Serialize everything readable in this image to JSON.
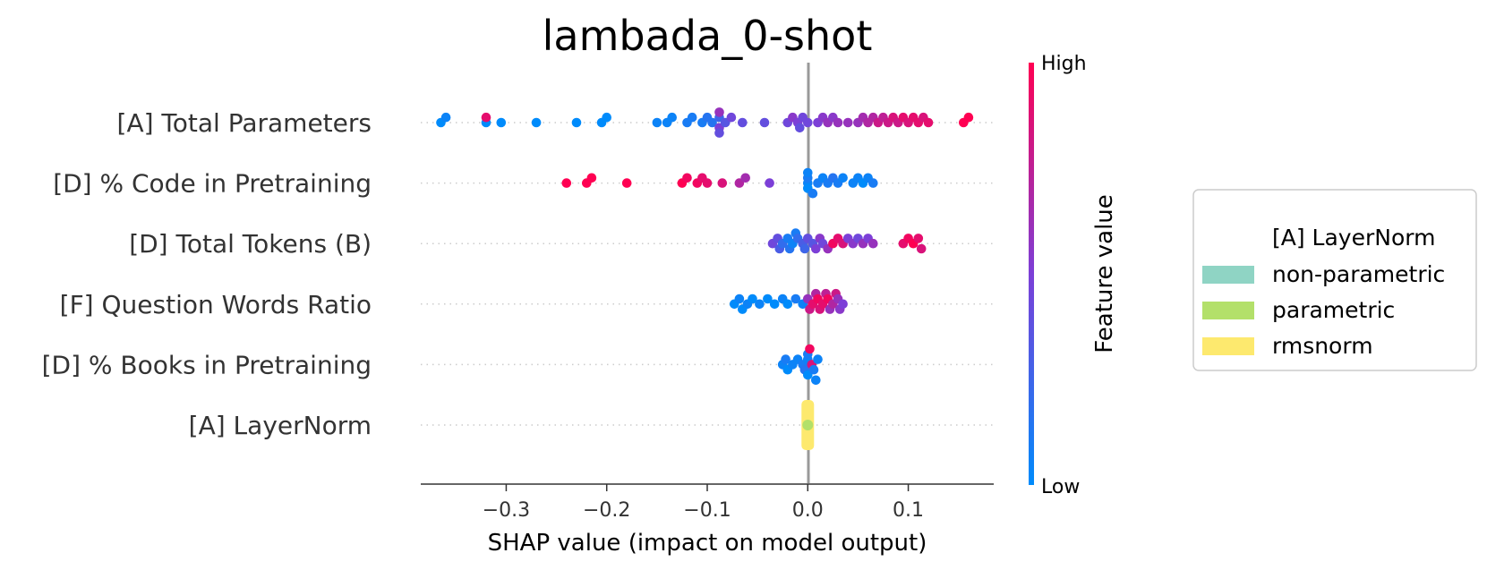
{
  "chart_data": {
    "type": "scatter",
    "subtype": "shap-beeswarm",
    "title": "lambada_0-shot",
    "xlabel": "SHAP value (impact on model output)",
    "xlim": [
      -0.385,
      0.185
    ],
    "xticks": [
      -0.3,
      -0.2,
      -0.1,
      0.0,
      0.1
    ],
    "xtick_labels": [
      "−0.3",
      "−0.2",
      "−0.1",
      "0.0",
      "0.1"
    ],
    "colorbar": {
      "label": "Feature value",
      "high_label": "High",
      "low_label": "Low",
      "low_color": "#008bfb",
      "mid_color": "#7c3fd7",
      "high_color": "#ff0052"
    },
    "legend": {
      "title": "[A] LayerNorm",
      "entries": [
        {
          "label": "non-parametric",
          "color": "#8fd4c4"
        },
        {
          "label": "parametric",
          "color": "#b3e06a"
        },
        {
          "label": "rmsnorm",
          "color": "#fde96e"
        }
      ]
    },
    "features": [
      {
        "name": "[A] Total Parameters",
        "points": [
          [
            -0.365,
            0.0
          ],
          [
            -0.36,
            0.05
          ],
          [
            -0.32,
            0.0
          ],
          [
            -0.32,
            0.9
          ],
          [
            -0.305,
            0.0
          ],
          [
            -0.27,
            0.0
          ],
          [
            -0.23,
            0.0
          ],
          [
            -0.205,
            0.0
          ],
          [
            -0.2,
            0.0
          ],
          [
            -0.15,
            0.05
          ],
          [
            -0.14,
            0.05
          ],
          [
            -0.135,
            0.05
          ],
          [
            -0.12,
            0.1
          ],
          [
            -0.115,
            0.1
          ],
          [
            -0.105,
            0.1
          ],
          [
            -0.1,
            0.15
          ],
          [
            -0.095,
            0.15
          ],
          [
            -0.088,
            0.25
          ],
          [
            -0.088,
            0.5
          ],
          [
            -0.088,
            0.6
          ],
          [
            -0.088,
            0.4
          ],
          [
            -0.082,
            0.35
          ],
          [
            -0.076,
            0.45
          ],
          [
            -0.065,
            0.4
          ],
          [
            -0.043,
            0.4
          ],
          [
            -0.02,
            0.45
          ],
          [
            -0.015,
            0.55
          ],
          [
            -0.01,
            0.5
          ],
          [
            -0.008,
            0.4
          ],
          [
            -0.005,
            0.45
          ],
          [
            0.0,
            0.45
          ],
          [
            0.01,
            0.5
          ],
          [
            0.015,
            0.55
          ],
          [
            0.02,
            0.6
          ],
          [
            0.025,
            0.55
          ],
          [
            0.03,
            0.6
          ],
          [
            0.04,
            0.6
          ],
          [
            0.05,
            0.6
          ],
          [
            0.055,
            0.65
          ],
          [
            0.06,
            0.7
          ],
          [
            0.065,
            0.7
          ],
          [
            0.07,
            0.8
          ],
          [
            0.075,
            0.75
          ],
          [
            0.08,
            0.8
          ],
          [
            0.085,
            0.85
          ],
          [
            0.09,
            0.8
          ],
          [
            0.095,
            0.9
          ],
          [
            0.1,
            0.85
          ],
          [
            0.105,
            0.9
          ],
          [
            0.11,
            0.9
          ],
          [
            0.115,
            0.85
          ],
          [
            0.12,
            0.9
          ],
          [
            0.155,
            1.0
          ],
          [
            0.16,
            1.0
          ]
        ]
      },
      {
        "name": "[D] % Code in Pretraining",
        "points": [
          [
            -0.24,
            1.0
          ],
          [
            -0.22,
            1.0
          ],
          [
            -0.215,
            1.0
          ],
          [
            -0.18,
            1.0
          ],
          [
            -0.125,
            1.0
          ],
          [
            -0.12,
            0.95
          ],
          [
            -0.11,
            0.95
          ],
          [
            -0.105,
            0.9
          ],
          [
            -0.1,
            0.9
          ],
          [
            -0.085,
            0.85
          ],
          [
            -0.068,
            0.7
          ],
          [
            -0.062,
            0.65
          ],
          [
            -0.038,
            0.5
          ],
          [
            0.0,
            0.05
          ],
          [
            0.0,
            0.1
          ],
          [
            0.0,
            0.0
          ],
          [
            0.0,
            0.05
          ],
          [
            0.005,
            0.1
          ],
          [
            0.01,
            0.1
          ],
          [
            0.015,
            0.05
          ],
          [
            0.02,
            0.1
          ],
          [
            0.025,
            0.15
          ],
          [
            0.03,
            0.1
          ],
          [
            0.035,
            0.05
          ],
          [
            0.045,
            0.05
          ],
          [
            0.05,
            0.05
          ],
          [
            0.055,
            0.0
          ],
          [
            0.06,
            0.05
          ],
          [
            0.065,
            0.1
          ]
        ]
      },
      {
        "name": "[D] Total Tokens (B)",
        "points": [
          [
            -0.035,
            0.45
          ],
          [
            -0.03,
            0.4
          ],
          [
            -0.028,
            0.3
          ],
          [
            -0.025,
            0.2
          ],
          [
            -0.02,
            0.1
          ],
          [
            -0.018,
            0.15
          ],
          [
            -0.015,
            0.05
          ],
          [
            -0.012,
            0.1
          ],
          [
            -0.01,
            0.2
          ],
          [
            -0.005,
            0.3
          ],
          [
            -0.003,
            0.25
          ],
          [
            0.0,
            0.4
          ],
          [
            0.005,
            0.35
          ],
          [
            0.008,
            0.5
          ],
          [
            0.012,
            0.55
          ],
          [
            0.015,
            0.45
          ],
          [
            0.02,
            0.6
          ],
          [
            0.025,
            0.95
          ],
          [
            0.03,
            0.9
          ],
          [
            0.035,
            0.85
          ],
          [
            0.04,
            0.5
          ],
          [
            0.045,
            0.55
          ],
          [
            0.05,
            0.45
          ],
          [
            0.055,
            0.6
          ],
          [
            0.06,
            0.5
          ],
          [
            0.065,
            0.6
          ],
          [
            0.095,
            0.9
          ],
          [
            0.1,
            0.95
          ],
          [
            0.105,
            1.0
          ],
          [
            0.11,
            0.9
          ],
          [
            0.113,
            0.85
          ]
        ]
      },
      {
        "name": "[F] Question Words Ratio",
        "points": [
          [
            -0.073,
            0.0
          ],
          [
            -0.068,
            0.05
          ],
          [
            -0.065,
            0.0
          ],
          [
            -0.06,
            0.05
          ],
          [
            -0.055,
            0.0
          ],
          [
            -0.048,
            0.05
          ],
          [
            -0.04,
            0.0
          ],
          [
            -0.033,
            0.0
          ],
          [
            -0.025,
            0.05
          ],
          [
            -0.02,
            0.0
          ],
          [
            -0.012,
            0.1
          ],
          [
            -0.005,
            0.05
          ],
          [
            0.0,
            0.6
          ],
          [
            0.002,
            0.8
          ],
          [
            0.005,
            0.9
          ],
          [
            0.008,
            0.7
          ],
          [
            0.01,
            0.95
          ],
          [
            0.012,
            0.85
          ],
          [
            0.015,
            0.9
          ],
          [
            0.018,
            0.75
          ],
          [
            0.02,
            0.95
          ],
          [
            0.022,
            0.6
          ],
          [
            0.025,
            0.7
          ],
          [
            0.028,
            0.8
          ],
          [
            0.03,
            0.6
          ],
          [
            0.032,
            0.55
          ],
          [
            0.035,
            0.5
          ]
        ]
      },
      {
        "name": "[D] % Books in Pretraining",
        "points": [
          [
            -0.025,
            0.05
          ],
          [
            -0.022,
            0.1
          ],
          [
            -0.02,
            0.0
          ],
          [
            -0.015,
            0.05
          ],
          [
            -0.01,
            0.05
          ],
          [
            -0.005,
            0.1
          ],
          [
            -0.003,
            0.15
          ],
          [
            0.0,
            0.05
          ],
          [
            0.0,
            0.1
          ],
          [
            0.0,
            0.0
          ],
          [
            0.002,
            0.95
          ],
          [
            0.004,
            0.85
          ],
          [
            0.006,
            0.1
          ],
          [
            0.008,
            0.05
          ],
          [
            0.01,
            0.05
          ]
        ]
      },
      {
        "name": "[A] LayerNorm",
        "points": []
      }
    ]
  }
}
